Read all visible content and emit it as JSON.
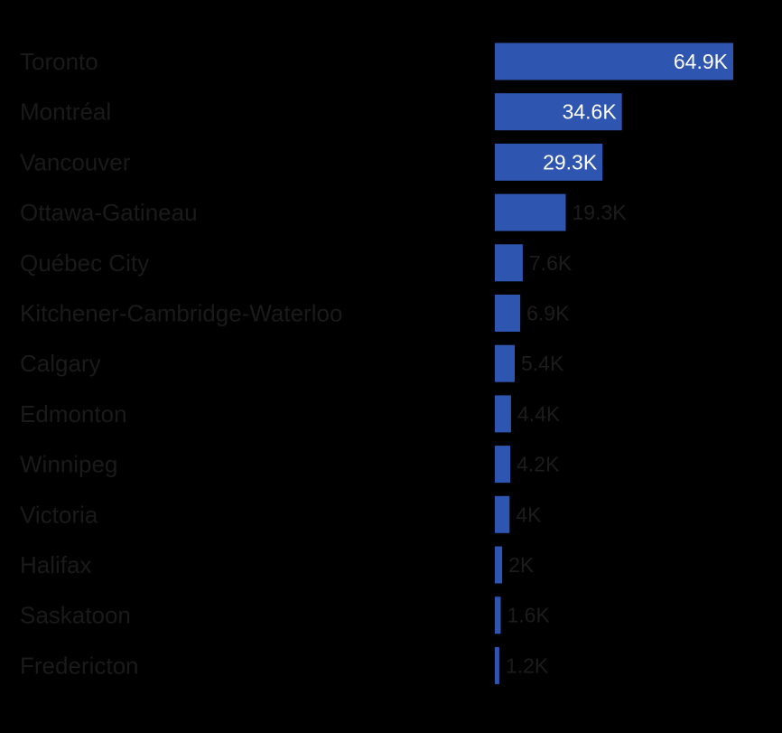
{
  "chart_data": {
    "type": "bar",
    "orientation": "horizontal",
    "title": "",
    "xlabel": "",
    "ylabel": "",
    "grid": false,
    "legend": "none",
    "xlim": [
      0,
      70000
    ],
    "categories": [
      "Toronto",
      "Montréal",
      "Vancouver",
      "Ottawa-Gatineau",
      "Québec City",
      "Kitchener-Cambridge-Waterloo",
      "Calgary",
      "Edmonton",
      "Winnipeg",
      "Victoria",
      "Halifax",
      "Saskatoon",
      "Fredericton"
    ],
    "values": [
      64900,
      34600,
      29300,
      19300,
      7600,
      6900,
      5400,
      4400,
      4200,
      4000,
      2000,
      1600,
      1200
    ],
    "value_labels": [
      "64.9K",
      "34.6K",
      "29.3K",
      "19.3K",
      "7.6K",
      "6.9K",
      "5.4K",
      "4.4K",
      "4.2K",
      "4K",
      "2K",
      "1.6K",
      "1.2K"
    ]
  },
  "colors": {
    "background": "#000000",
    "bar": "#2e55b0",
    "category_text": "#1a1a1a",
    "value_text_inside": "#ffffff",
    "value_text_outside": "#1c1c1c"
  }
}
